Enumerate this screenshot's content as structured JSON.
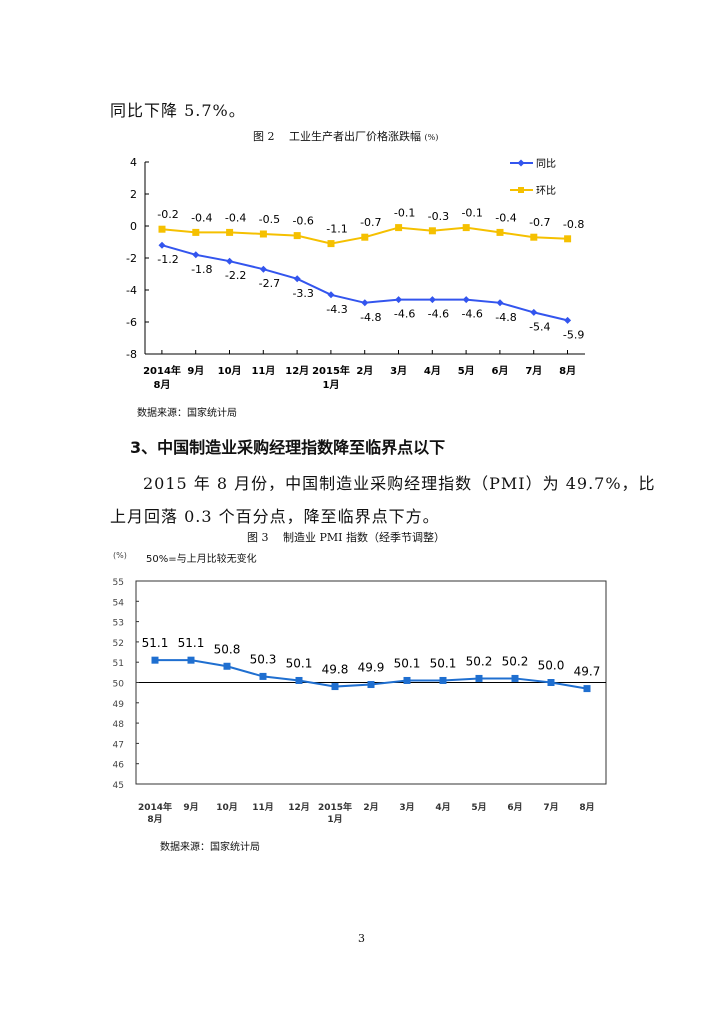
{
  "intro_line": "同比下降 5.7%。",
  "section_heading": "3、中国制造业采购经理指数降至临界点以下",
  "paragraph": {
    "line1": "2015 年 8 月份，中国制造业采购经理指数（PMI）为 49.7%，比",
    "line2": "上月回落 0.3 个百分点，降至临界点下方。"
  },
  "page_number": "3",
  "chart_data": [
    {
      "type": "line",
      "title": "图 2　 工业生产者出厂价格涨跌幅",
      "title_unit": "(%)",
      "source": "数据来源：国家统计局",
      "categories": [
        "2014年|8月",
        "9月",
        "10月",
        "11月",
        "12月",
        "2015年|1月",
        "2月",
        "3月",
        "4月",
        "5月",
        "6月",
        "7月",
        "8月"
      ],
      "ylim": [
        -8,
        4
      ],
      "yticks": [
        4,
        2,
        0,
        -2,
        -4,
        -6,
        -8
      ],
      "legend_placement": "top-right",
      "series": [
        {
          "name": "同比",
          "color": "#3355ee",
          "marker": "diamond",
          "values": [
            -1.2,
            -1.8,
            -2.2,
            -2.7,
            -3.3,
            -4.3,
            -4.8,
            -4.6,
            -4.6,
            -4.6,
            -4.8,
            -5.4,
            -5.9
          ],
          "labels": [
            "-1.2",
            "-1.8",
            "-2.2",
            "-2.7",
            "-3.3",
            "-4.3",
            "-4.8",
            "-4.6",
            "-4.6",
            "-4.6",
            "-4.8",
            "-5.4",
            "-5.9"
          ]
        },
        {
          "name": "环比",
          "color": "#f5c000",
          "marker": "square",
          "values": [
            -0.2,
            -0.4,
            -0.4,
            -0.5,
            -0.6,
            -1.1,
            -0.7,
            -0.1,
            -0.3,
            -0.1,
            -0.4,
            -0.7,
            -0.8
          ],
          "labels": [
            "-0.2",
            "-0.4",
            "-0.4",
            "-0.5",
            "-0.6",
            "-1.1",
            "-0.7",
            "-0.1",
            "-0.3",
            "-0.1",
            "-0.4",
            "-0.7",
            "-0.8"
          ]
        }
      ]
    },
    {
      "type": "line",
      "title": "图 3　 制造业 PMI 指数（经季节调整）",
      "unit_label": "(%)",
      "annotation": "50%=与上月比较无变化",
      "source": "数据来源：国家统计局",
      "categories": [
        "2014年|8月",
        "9月",
        "10月",
        "11月",
        "12月",
        "2015年|1月",
        "2月",
        "3月",
        "4月",
        "5月",
        "6月",
        "7月",
        "8月"
      ],
      "ylim": [
        45,
        55
      ],
      "yticks": [
        55,
        54,
        53,
        52,
        51,
        50,
        49,
        48,
        47,
        46,
        45
      ],
      "reference_line": 50,
      "series": [
        {
          "name": "PMI",
          "color": "#1f6fd0",
          "marker": "square",
          "values": [
            51.1,
            51.1,
            50.8,
            50.3,
            50.1,
            49.8,
            49.9,
            50.1,
            50.1,
            50.2,
            50.2,
            50.0,
            49.7
          ],
          "labels": [
            "51.1",
            "51.1",
            "50.8",
            "50.3",
            "50.1",
            "49.8",
            "49.9",
            "50.1",
            "50.1",
            "50.2",
            "50.2",
            "50.0",
            "49.7"
          ]
        }
      ]
    }
  ]
}
